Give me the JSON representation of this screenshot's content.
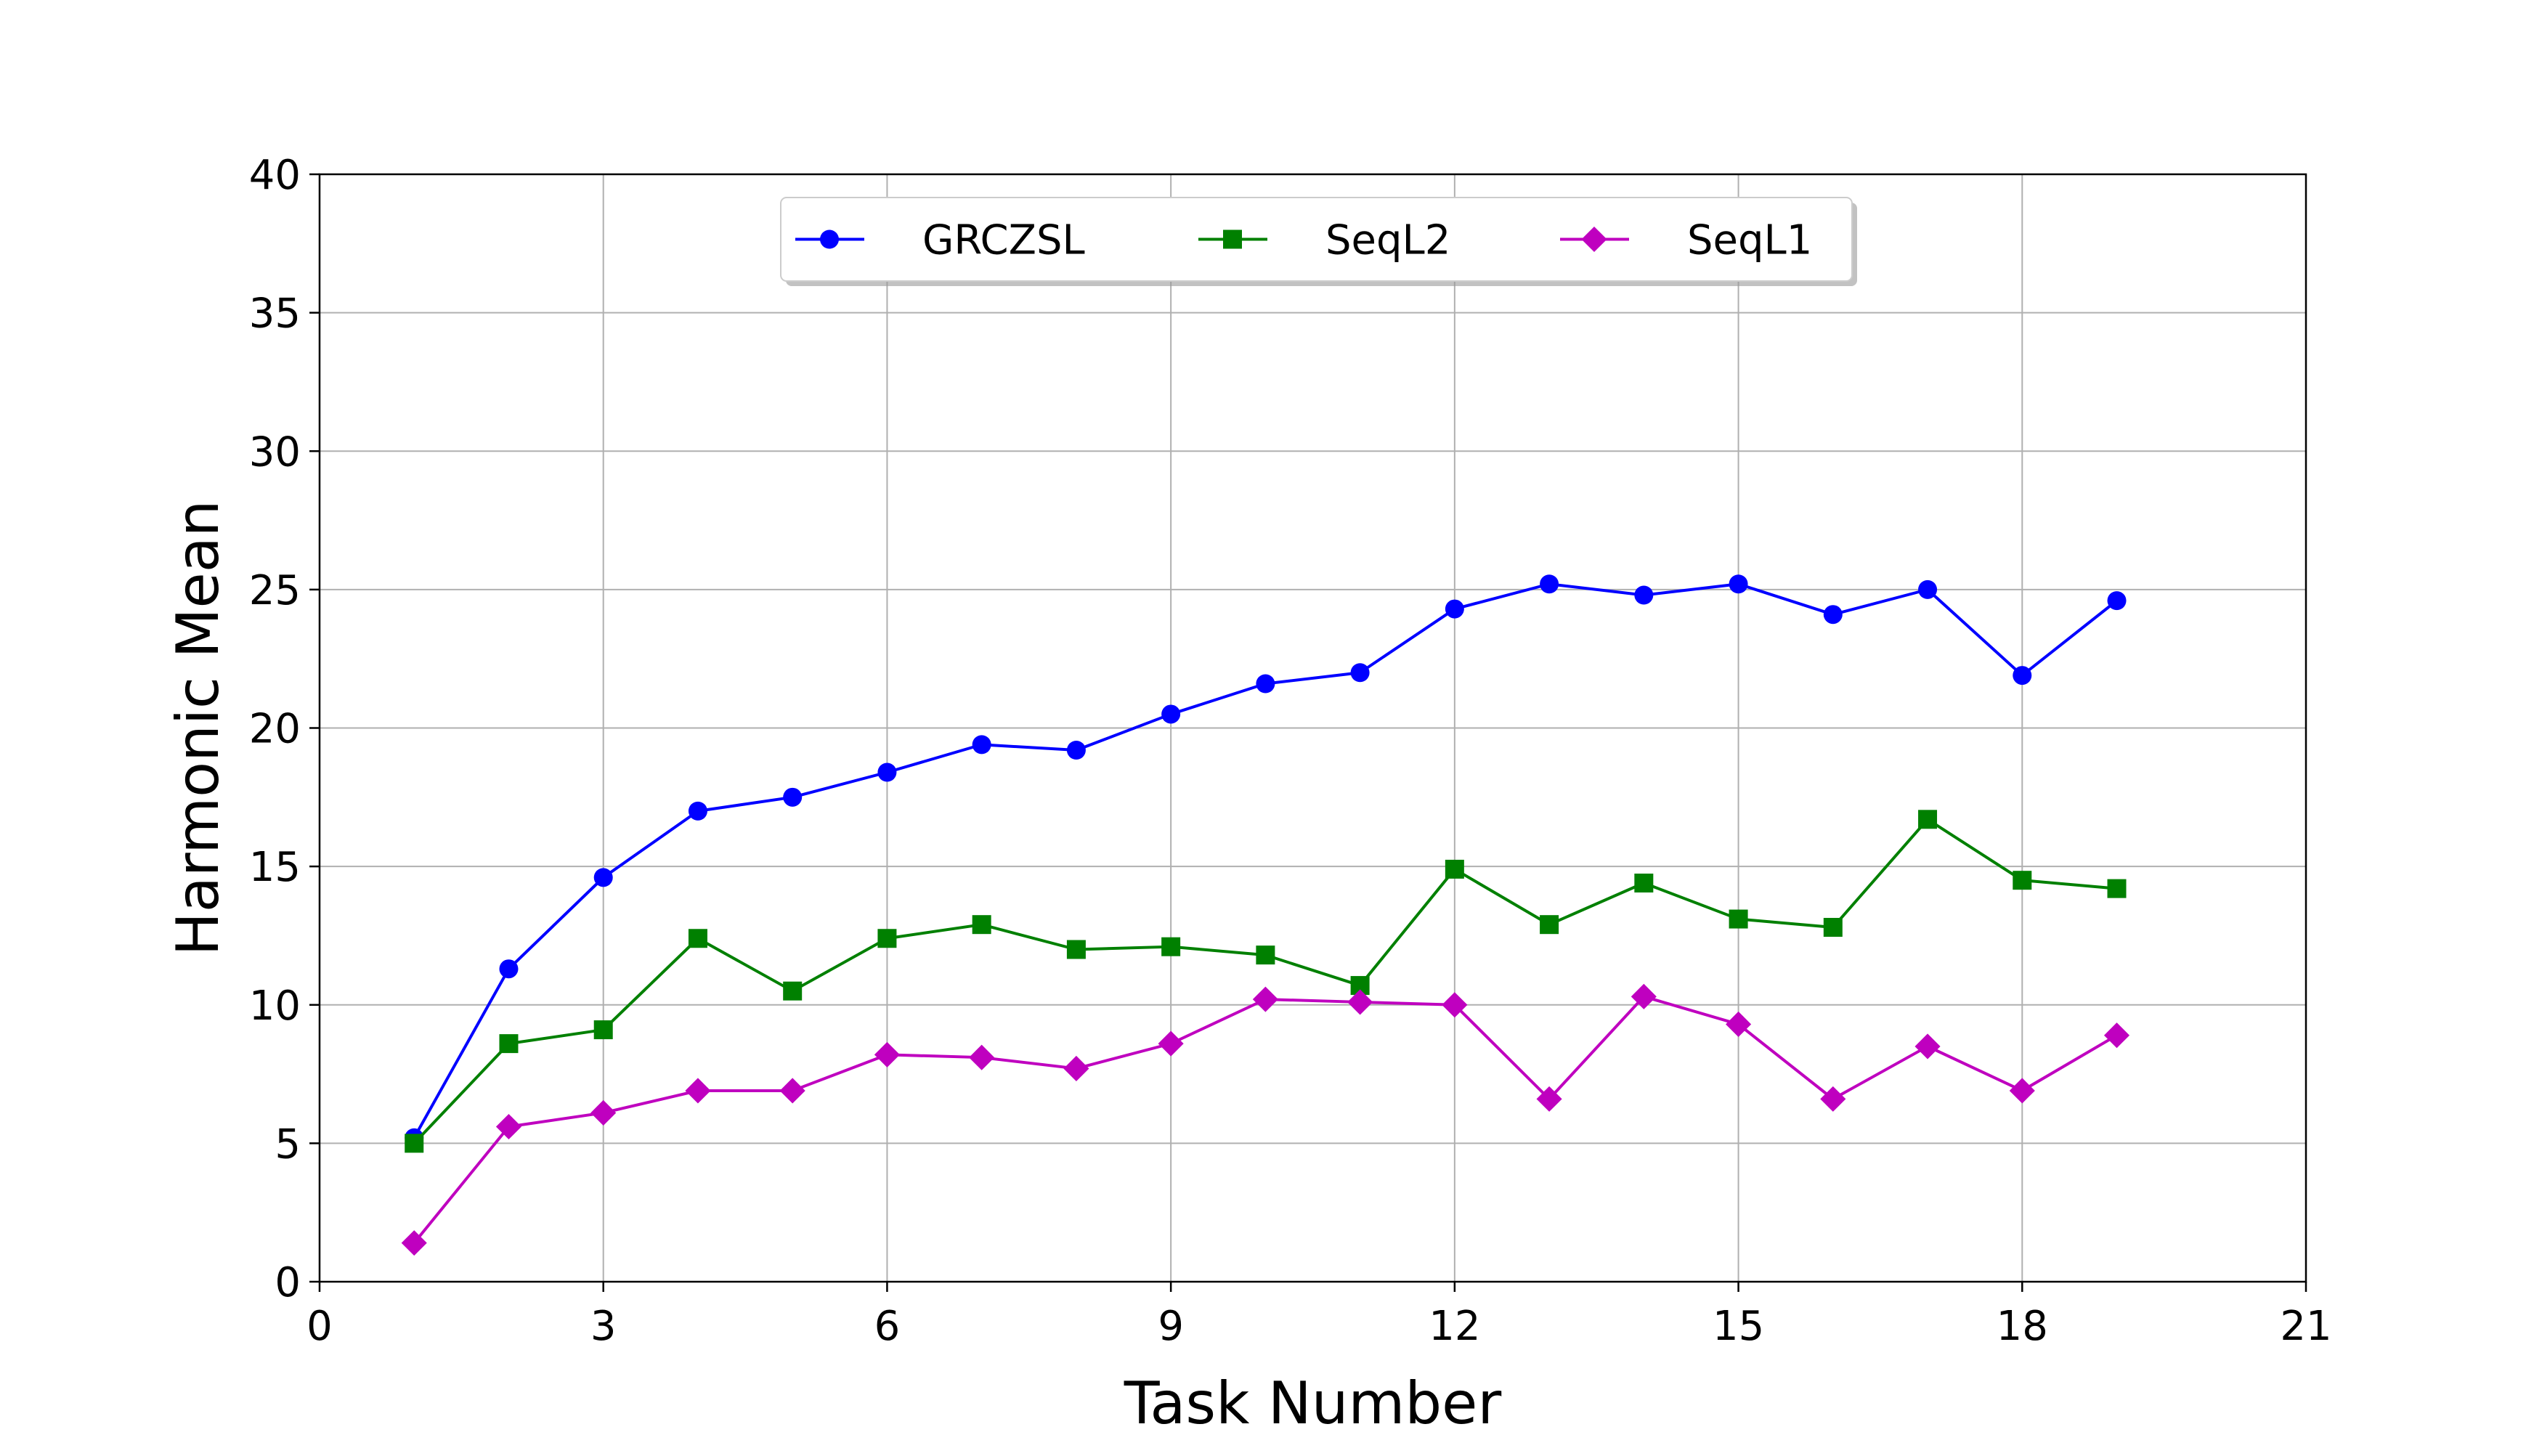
{
  "chart_data": {
    "type": "line",
    "title": "",
    "xlabel": "Task Number",
    "ylabel": "Harmonic Mean",
    "xlim": [
      0,
      21
    ],
    "ylim": [
      0,
      40
    ],
    "xticks": [
      0,
      3,
      6,
      9,
      12,
      15,
      18,
      21
    ],
    "yticks": [
      0,
      5,
      10,
      15,
      20,
      25,
      30,
      35,
      40
    ],
    "grid": true,
    "legend_position": "top-center",
    "x": [
      1,
      2,
      3,
      4,
      5,
      6,
      7,
      8,
      9,
      10,
      11,
      12,
      13,
      14,
      15,
      16,
      17,
      18,
      19
    ],
    "series": [
      {
        "name": "GRCZSL",
        "color": "#0000ff",
        "marker": "circle",
        "values": [
          5.2,
          11.3,
          14.6,
          17.0,
          17.5,
          18.4,
          19.4,
          19.2,
          20.5,
          21.6,
          22.0,
          24.3,
          25.2,
          24.8,
          25.2,
          24.1,
          25.0,
          21.9,
          24.6
        ]
      },
      {
        "name": "SeqL2",
        "color": "#008000",
        "marker": "square",
        "values": [
          5.0,
          8.6,
          9.1,
          12.4,
          10.5,
          12.4,
          12.9,
          12.0,
          12.1,
          11.8,
          10.7,
          14.9,
          12.9,
          14.4,
          13.1,
          12.8,
          16.7,
          14.5,
          14.2
        ]
      },
      {
        "name": "SeqL1",
        "color": "#bf00bf",
        "marker": "diamond",
        "values": [
          1.4,
          5.6,
          6.1,
          6.9,
          6.9,
          8.2,
          8.1,
          7.7,
          8.6,
          10.2,
          10.1,
          10.0,
          6.6,
          10.3,
          9.3,
          6.6,
          8.5,
          6.9,
          8.9
        ]
      }
    ]
  }
}
